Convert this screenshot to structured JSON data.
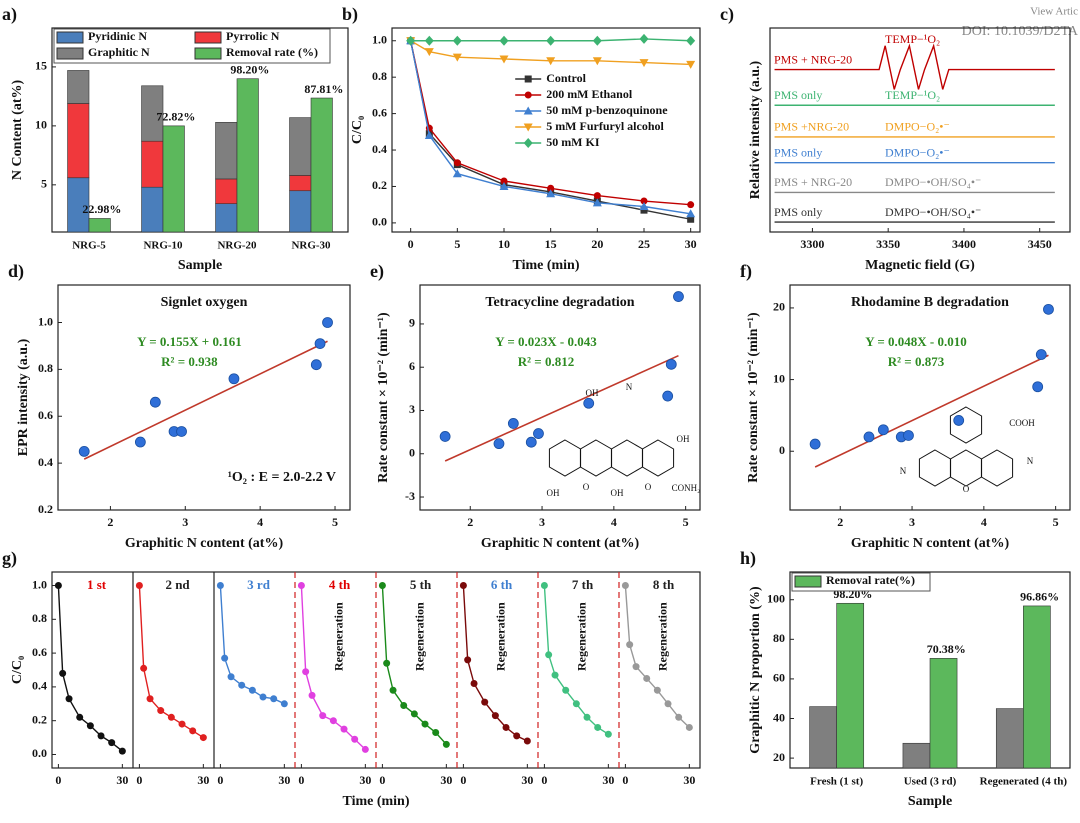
{
  "watermark": {
    "link": "View Artic",
    "doi": "DOI: 10.1039/D2TA"
  },
  "chart_data": [
    {
      "type": "bar",
      "label": "a)",
      "stacked": true,
      "xlabel": "Sample",
      "ylabel": "N Content (at%)",
      "categories": [
        "NRG-5",
        "NRG-10",
        "NRG-20",
        "NRG-30"
      ],
      "series": [
        {
          "name": "Pyridinic N",
          "color": "#4a7ebb",
          "values": [
            5.6,
            4.8,
            3.4,
            4.5
          ]
        },
        {
          "name": "Pyrrolic N",
          "color": "#f0383c",
          "values": [
            6.3,
            3.9,
            2.1,
            1.3
          ]
        },
        {
          "name": "Graphitic N",
          "color": "#7f7f7f",
          "values": [
            2.8,
            4.7,
            4.8,
            4.9
          ]
        },
        {
          "name": "Removal rate (%)",
          "color": "#5cb85c",
          "axis": "y2",
          "values": [
            22.98,
            72.82,
            98.2,
            87.81
          ],
          "value_labels": [
            "22.98%",
            "72.82%",
            "98.20%",
            "87.81%"
          ]
        }
      ],
      "ylim": [
        1,
        18.3
      ],
      "yticks": [
        5,
        10,
        15
      ],
      "y2lim": [
        15.7,
        125.5
      ],
      "legend": "upper left"
    },
    {
      "type": "line",
      "label": "b)",
      "xlabel": "Time (min)",
      "ylabel": "C/C₀",
      "x": [
        0,
        2,
        5,
        10,
        15,
        20,
        25,
        30
      ],
      "xlim": [
        -2,
        31
      ],
      "xticks": [
        0,
        5,
        10,
        15,
        20,
        25,
        30
      ],
      "ylim": [
        -0.05,
        1.07
      ],
      "yticks": [
        {
          "value": 0,
          "label": "0.0"
        },
        0.2,
        0.4,
        0.6,
        0.8,
        {
          "value": 1,
          "label": "1.0"
        }
      ],
      "legend": "right",
      "series": [
        {
          "name": "Control",
          "color": "#333333",
          "marker": "square",
          "values": [
            1,
            0.49,
            0.32,
            0.21,
            0.17,
            0.12,
            0.07,
            0.02
          ]
        },
        {
          "name": "200 mM Ethanol",
          "color": "#c00000",
          "marker": "circle",
          "values": [
            1,
            0.52,
            0.33,
            0.23,
            0.19,
            0.15,
            0.12,
            0.1
          ]
        },
        {
          "name": "50 mM p-benzoquinone",
          "color": "#3f7fd0",
          "marker": "triangle-up",
          "values": [
            1,
            0.48,
            0.27,
            0.2,
            0.16,
            0.11,
            0.09,
            0.05
          ]
        },
        {
          "name": "5 mM Furfuryl alcohol",
          "color": "#f0a020",
          "marker": "triangle-down",
          "values": [
            1,
            0.94,
            0.91,
            0.9,
            0.89,
            0.89,
            0.88,
            0.87
          ]
        },
        {
          "name": "50 mM KI",
          "color": "#3cb371",
          "marker": "diamond",
          "values": [
            1,
            1,
            1,
            1,
            1,
            1,
            1.01,
            1
          ]
        }
      ]
    },
    {
      "type": "line",
      "label": "c)",
      "xlabel": "Magnetic field (G)",
      "ylabel": "Relative intensity (a.u.)",
      "x": [
        3275,
        3344,
        3348,
        3354,
        3358,
        3364,
        3370,
        3374,
        3380,
        3386,
        3390,
        3460
      ],
      "xlim": [
        3272,
        3470
      ],
      "xticks": [
        3300,
        3350,
        3400,
        3450
      ],
      "ylim": [
        -0.3,
        10
      ],
      "series": [
        {
          "name": "PMS + NRG-20",
          "annotation": "TEMP−¹O₂",
          "color": "#c00000",
          "values": [
            7.9,
            7.9,
            9.1,
            6.9,
            7.9,
            9.1,
            6.9,
            7.9,
            9.1,
            6.9,
            7.9,
            7.9
          ]
        },
        {
          "name": "PMS  only",
          "annotation": "TEMP−¹O₂",
          "color": "#3cb371",
          "values": [
            6.1,
            6.1,
            6.1,
            6.1,
            6.1,
            6.1,
            6.1,
            6.1,
            6.1,
            6.1,
            6.1,
            6.1
          ]
        },
        {
          "name": "PMS +NRG-20",
          "annotation": "DMPO−O₂•⁻",
          "color": "#f0a020",
          "values": [
            4.5,
            4.5,
            4.5,
            4.5,
            4.5,
            4.5,
            4.5,
            4.5,
            4.5,
            4.5,
            4.5,
            4.5
          ]
        },
        {
          "name": "PMS  only",
          "annotation": "DMPO−O₂•⁻",
          "color": "#3f7fd0",
          "values": [
            3.2,
            3.2,
            3.2,
            3.2,
            3.2,
            3.2,
            3.2,
            3.2,
            3.2,
            3.2,
            3.2,
            3.2
          ]
        },
        {
          "name": "PMS + NRG-20",
          "annotation": "DMPO−•OH/SO₄•⁻",
          "color": "#888888",
          "values": [
            1.7,
            1.7,
            1.7,
            1.7,
            1.7,
            1.7,
            1.7,
            1.7,
            1.7,
            1.7,
            1.7,
            1.7
          ]
        },
        {
          "name": "PMS  only",
          "annotation": "DMPO−•OH/SO₄•⁻",
          "color": "#333333",
          "values": [
            0.2,
            0.2,
            0.2,
            0.2,
            0.2,
            0.2,
            0.2,
            0.2,
            0.2,
            0.2,
            0.2,
            0.2
          ]
        }
      ]
    },
    {
      "type": "scatter",
      "label": "d)",
      "title": "Signlet oxygen",
      "xlabel": "Graphitic N content (at%)",
      "ylabel": "EPR intensity (a.u.)",
      "x": [
        1.65,
        2.4,
        2.6,
        2.85,
        2.95,
        3.65,
        4.75,
        4.8,
        4.9
      ],
      "values": [
        0.45,
        0.49,
        0.66,
        0.535,
        0.535,
        0.76,
        0.82,
        0.91,
        1.0
      ],
      "color": "#2f6fd8",
      "xlim": [
        1.3,
        5.2
      ],
      "xticks": [
        2,
        3,
        4,
        5
      ],
      "ylim": [
        0.2,
        1.16
      ],
      "yticks": [
        0.2,
        0.4,
        0.6,
        0.8,
        {
          "value": 1,
          "label": "1.0"
        }
      ],
      "fit": {
        "x": [
          1.65,
          4.9
        ],
        "y": [
          0.417,
          0.92
        ],
        "color": "#c0392b"
      },
      "equation": "Y = 0.155X + 0.161",
      "r2": "R² = 0.938",
      "annotation": "¹O₂ :  E = 2.0-2.2  V"
    },
    {
      "type": "scatter",
      "label": "e)",
      "title": "Tetracycline degradation",
      "xlabel": "Graphitic N content (at%)",
      "ylabel": "Rate constant × 10⁻² (min⁻¹)",
      "x": [
        1.65,
        2.4,
        2.6,
        2.85,
        2.95,
        3.65,
        4.75,
        4.8,
        4.9
      ],
      "values": [
        1.2,
        0.7,
        2.1,
        0.8,
        1.4,
        3.5,
        4.0,
        6.2,
        10.9
      ],
      "color": "#2f6fd8",
      "xlim": [
        1.3,
        5.2
      ],
      "xticks": [
        2,
        3,
        4,
        5
      ],
      "ylim": [
        -3.9,
        11.7
      ],
      "yticks": [
        -3,
        0,
        3,
        6,
        9
      ],
      "fit": {
        "x": [
          1.65,
          4.9
        ],
        "y": [
          -0.5,
          6.8
        ],
        "color": "#c0392b"
      },
      "equation": "Y = 0.023X - 0.043",
      "r2": "R² = 0.812",
      "structure_labels": [
        "OH",
        "N",
        "OH",
        "CONH₂",
        "OH",
        "O",
        "OH",
        "O"
      ]
    },
    {
      "type": "scatter",
      "label": "f)",
      "title": "Rhodamine B degradation",
      "xlabel": "Graphitic N content (at%)",
      "ylabel": "Rate constant × 10⁻² (min⁻¹)",
      "x": [
        1.65,
        2.4,
        2.6,
        2.85,
        2.95,
        3.65,
        4.75,
        4.8,
        4.9
      ],
      "values": [
        1.0,
        2.0,
        3.0,
        2.0,
        2.2,
        4.3,
        9.0,
        13.5,
        19.8
      ],
      "color": "#2f6fd8",
      "xlim": [
        1.3,
        5.2
      ],
      "xticks": [
        2,
        3,
        4,
        5
      ],
      "ylim": [
        -8.2,
        23.2
      ],
      "yticks": [
        0,
        10,
        20
      ],
      "fit": {
        "x": [
          1.65,
          4.9
        ],
        "y": [
          -2.2,
          13.4
        ],
        "color": "#c0392b"
      },
      "equation": "Y = 0.048X - 0.010",
      "r2": "R² = 0.873",
      "structure_labels": [
        "COOH",
        "N",
        "O",
        "N"
      ]
    },
    {
      "type": "line",
      "label": "g)",
      "facets": true,
      "xlabel": "Time (min)",
      "ylabel": "C/C₀",
      "annotation": "Regeneration",
      "x": [
        0,
        2,
        5,
        10,
        15,
        20,
        25,
        30
      ],
      "xlim": [
        -3,
        35
      ],
      "xticks": [
        0,
        30
      ],
      "ylim": [
        -0.08,
        1.08
      ],
      "yticks": [
        {
          "value": 0,
          "label": "0.0"
        },
        0.2,
        0.4,
        0.6,
        0.8,
        {
          "value": 1,
          "label": "1.0"
        }
      ],
      "series": [
        {
          "name": "1 st",
          "color": "#111111",
          "label_color": "#e00000",
          "values": [
            1,
            0.48,
            0.33,
            0.22,
            0.17,
            0.11,
            0.07,
            0.02
          ]
        },
        {
          "name": "2 nd",
          "color": "#e02020",
          "label_color": "#222222",
          "separator": "solid",
          "values": [
            1,
            0.51,
            0.33,
            0.26,
            0.22,
            0.18,
            0.14,
            0.1
          ]
        },
        {
          "name": "3 rd",
          "color": "#3f7fd0",
          "label_color": "#3f7fd0",
          "separator": "solid",
          "values": [
            1,
            0.57,
            0.46,
            0.41,
            0.38,
            0.34,
            0.33,
            0.3
          ]
        },
        {
          "name": "4 th",
          "color": "#e040e0",
          "label_color": "#e00000",
          "separator": "dashed",
          "values": [
            1,
            0.49,
            0.35,
            0.23,
            0.2,
            0.15,
            0.09,
            0.03
          ]
        },
        {
          "name": "5 th",
          "color": "#1a8a1a",
          "label_color": "#222222",
          "separator": "dashed",
          "values": [
            1,
            0.54,
            0.38,
            0.29,
            0.24,
            0.18,
            0.13,
            0.06
          ]
        },
        {
          "name": "6 th",
          "color": "#7a0a0a",
          "label_color": "#3f7fd0",
          "separator": "dashed",
          "values": [
            1,
            0.56,
            0.42,
            0.31,
            0.23,
            0.16,
            0.11,
            0.08
          ]
        },
        {
          "name": "7 th",
          "color": "#40c080",
          "label_color": "#222222",
          "separator": "dashed",
          "values": [
            1,
            0.59,
            0.47,
            0.38,
            0.3,
            0.22,
            0.16,
            0.12
          ]
        },
        {
          "name": "8 th",
          "color": "#999999",
          "label_color": "#222222",
          "separator": "dashed",
          "values": [
            1,
            0.65,
            0.52,
            0.45,
            0.38,
            0.3,
            0.22,
            0.16
          ]
        }
      ]
    },
    {
      "type": "bar",
      "label": "h)",
      "xlabel": "Sample",
      "ylabel": "Graphitic N proportion (%)",
      "categories": [
        "Fresh (1 st)",
        "Used (3 rd)",
        "Regenerated (4 th)"
      ],
      "series": [
        {
          "color": "#7f7f7f",
          "values": [
            46,
            27.5,
            45
          ]
        },
        {
          "name": "Removal rate(%)",
          "color": "#5cb85c",
          "values": [
            98.2,
            70.38,
            96.86
          ],
          "value_labels": [
            "98.20%",
            "70.38%",
            "96.86%"
          ]
        }
      ],
      "ylim": [
        15,
        114
      ],
      "yticks": [
        20,
        40,
        60,
        80,
        100
      ],
      "legend": "upper left"
    }
  ]
}
